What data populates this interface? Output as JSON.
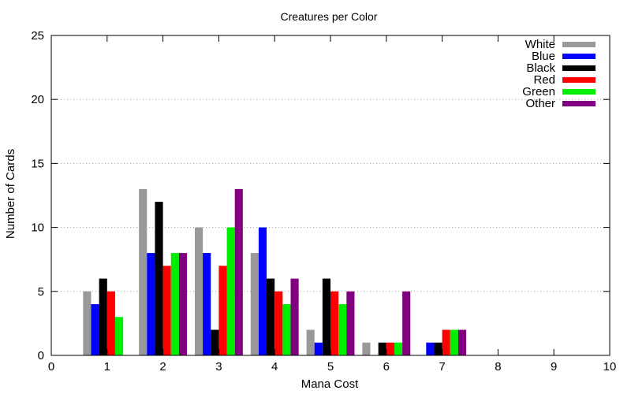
{
  "chart_data": {
    "type": "bar",
    "title": "Creatures per Color",
    "xlabel": "Mana Cost",
    "ylabel": "Number of Cards",
    "xlim": [
      0,
      10
    ],
    "ylim": [
      0,
      25
    ],
    "xticks": [
      "0",
      "1",
      "2",
      "3",
      "4",
      "5",
      "6",
      "7",
      "8",
      "9",
      "10"
    ],
    "yticks": [
      "0",
      "5",
      "10",
      "15",
      "20",
      "25"
    ],
    "grid": "horizontal-dotted",
    "legend_position": "top-right",
    "categories": [
      1,
      2,
      3,
      4,
      5,
      6,
      7
    ],
    "series": [
      {
        "name": "White",
        "color": "#999999",
        "values": [
          5,
          13,
          10,
          8,
          2,
          1,
          0
        ]
      },
      {
        "name": "Blue",
        "color": "#0000ff",
        "values": [
          4,
          8,
          8,
          10,
          1,
          0,
          1
        ]
      },
      {
        "name": "Black",
        "color": "#000000",
        "values": [
          6,
          12,
          2,
          6,
          6,
          1,
          1
        ]
      },
      {
        "name": "Red",
        "color": "#ff0000",
        "values": [
          5,
          7,
          7,
          5,
          5,
          1,
          2
        ]
      },
      {
        "name": "Green",
        "color": "#00ee00",
        "values": [
          3,
          8,
          10,
          4,
          4,
          1,
          2
        ]
      },
      {
        "name": "Other",
        "color": "#800080",
        "values": [
          0,
          8,
          13,
          6,
          5,
          5,
          2
        ]
      }
    ]
  }
}
